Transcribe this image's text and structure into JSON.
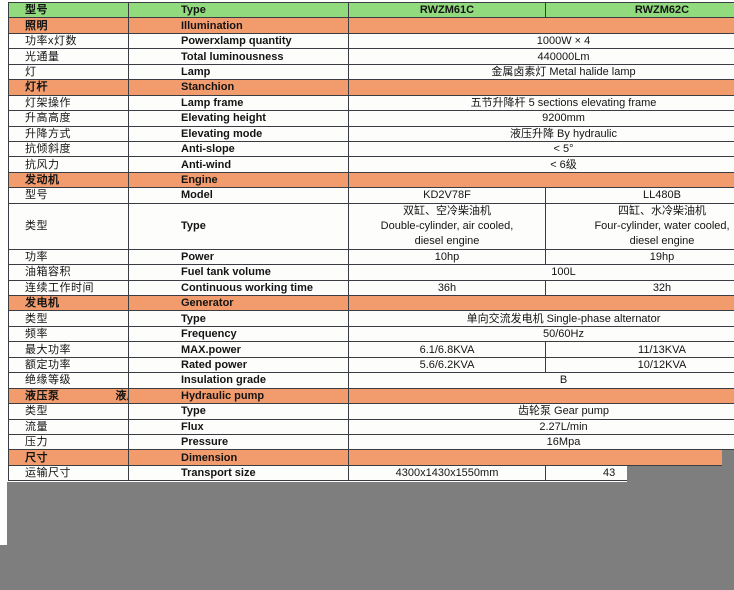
{
  "document_type": "product specification sheet (scanned)",
  "colors": {
    "header_green": "#92da7e",
    "section_orange": "#f29c6e",
    "grid_line": "#3a3d42",
    "scan_backing_gray": "#7e7e7e"
  },
  "table": {
    "columns": [
      "型号",
      "Type",
      "RWZM61C",
      "RWZM62C"
    ],
    "rows": [
      {
        "t": "sec",
        "zh": "照明",
        "en": "Illumination"
      },
      {
        "t": "m",
        "zh": "功率x灯数",
        "en": "Powerxlamp quantity",
        "v": "1000W × 4"
      },
      {
        "t": "m",
        "zh": "光通量",
        "en": "Total luminousness",
        "v": "440000Lm"
      },
      {
        "t": "m",
        "zh": "灯",
        "en": "Lamp",
        "v": "金属卤素灯 Metal halide lamp"
      },
      {
        "t": "sec",
        "zh": "灯杆",
        "en": "Stanchion"
      },
      {
        "t": "m",
        "zh": "灯架操作",
        "en": "Lamp frame",
        "v": "五节升降杆 5 sections elevating frame"
      },
      {
        "t": "m",
        "zh": "升高高度",
        "en": "Elevating height",
        "v": "9200mm"
      },
      {
        "t": "m",
        "zh": "升降方式",
        "en": "Elevating mode",
        "v": "液压升降 By hydraulic"
      },
      {
        "t": "m",
        "zh": "抗倾斜度",
        "en": "Anti-slope",
        "v": "< 5°"
      },
      {
        "t": "m",
        "zh": "抗风力",
        "en": "Anti-wind",
        "v": "< 6级"
      },
      {
        "t": "sec",
        "zh": "发动机",
        "en": "Engine"
      },
      {
        "t": "s",
        "zh": "型号",
        "en": "Model",
        "v1": "KD2V78F",
        "v2": "LL480B"
      },
      {
        "t": "s",
        "zh": "类型",
        "en": "Type",
        "tall": true,
        "v1": "双缸、空冷柴油机\nDouble-cylinder, air cooled,\ndiesel engine",
        "v2": "四缸、水冷柴油机\nFour-cylinder, water cooled,\ndiesel engine"
      },
      {
        "t": "s",
        "zh": "功率",
        "en": "Power",
        "v1": "10hp",
        "v2": "19hp"
      },
      {
        "t": "m",
        "zh": "油箱容积",
        "en": "Fuel tank volume",
        "v": "100L"
      },
      {
        "t": "s",
        "zh": "连续工作时间",
        "en": "Continuous working time",
        "v1": "36h",
        "v2": "32h"
      },
      {
        "t": "sec",
        "zh": "发电机",
        "en": "Generator"
      },
      {
        "t": "m",
        "zh": "类型",
        "en": "Type",
        "v": "单向交流发电机 Single-phase alternator"
      },
      {
        "t": "m",
        "zh": "频率",
        "en": "Frequency",
        "v": "50/60Hz"
      },
      {
        "t": "s",
        "zh": "最大功率",
        "en": "MAX.power",
        "v1": "6.1/6.8KVA",
        "v2": "11/13KVA"
      },
      {
        "t": "s",
        "zh": "额定功率",
        "en": "Rated power",
        "v1": "5.6/6.2KVA",
        "v2": "10/12KVA"
      },
      {
        "t": "m",
        "zh": "绝缘等级",
        "en": "Insulation grade",
        "v": "B"
      },
      {
        "t": "sec",
        "zh": "液压泵",
        "en": "Hydraulic pump",
        "mark": true
      },
      {
        "t": "m",
        "zh": "类型",
        "en": "Type",
        "v": "齿轮泵 Gear pump"
      },
      {
        "t": "m",
        "zh": "流量",
        "en": "Flux",
        "v": "2.27L/min"
      },
      {
        "t": "m",
        "zh": "压力",
        "en": "Pressure",
        "v": "16Mpa"
      },
      {
        "t": "sec",
        "zh": "尺寸",
        "en": "Dimension"
      },
      {
        "t": "s",
        "zh": "运输尺寸",
        "en": "Transport size",
        "v1": "4300x1430x1550mm",
        "v2": "43",
        "partial": true
      }
    ]
  }
}
